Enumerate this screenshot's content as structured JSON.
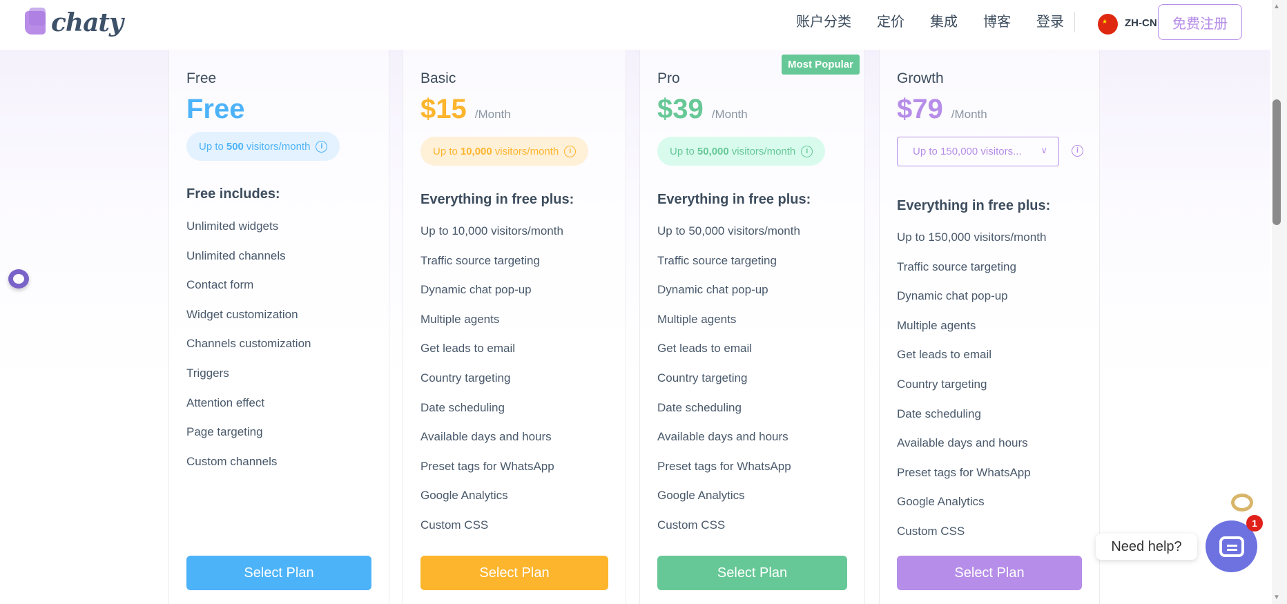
{
  "header": {
    "logo": "chaty",
    "nav": [
      "账户分类",
      "定价",
      "集成",
      "博客",
      "登录"
    ],
    "language": "ZH-CN",
    "signup": "免费注册"
  },
  "colors": {
    "free": "#4db3f9",
    "basic": "#fdb52d",
    "pro": "#66c896",
    "growth": "#b68de8"
  },
  "plans": [
    {
      "name": "Free",
      "price": "Free",
      "per": "",
      "visitors_pre": "Up to",
      "visitors_num": "500",
      "visitors_post": "visitors/month",
      "heading": "Free includes:",
      "items": [
        "Unlimited widgets",
        "Unlimited channels",
        "Contact form",
        "Widget customization",
        "Channels customization",
        "Triggers",
        "Attention effect",
        "Page targeting",
        "Custom channels"
      ],
      "button": "Select Plan"
    },
    {
      "name": "Basic",
      "price": "$15",
      "per": "/Month",
      "visitors_pre": "Up to",
      "visitors_num": "10,000",
      "visitors_post": "visitors/month",
      "heading": "Everything in free plus:",
      "items": [
        "Up to 10,000 visitors/month",
        "Traffic source targeting",
        "Dynamic chat pop-up",
        "Multiple agents",
        "Get leads to email",
        "Country targeting",
        "Date scheduling",
        "Available days and hours",
        "Preset tags for WhatsApp",
        "Google Analytics",
        "Custom CSS"
      ],
      "button": "Select Plan"
    },
    {
      "name": "Pro",
      "badge": "Most Popular",
      "price": "$39",
      "per": "/Month",
      "visitors_pre": "Up to",
      "visitors_num": "50,000",
      "visitors_post": "visitors/month",
      "heading": "Everything in free plus:",
      "items": [
        "Up to 50,000 visitors/month",
        "Traffic source targeting",
        "Dynamic chat pop-up",
        "Multiple agents",
        "Get leads to email",
        "Country targeting",
        "Date scheduling",
        "Available days and hours",
        "Preset tags for WhatsApp",
        "Google Analytics",
        "Custom CSS"
      ],
      "button": "Select Plan"
    },
    {
      "name": "Growth",
      "price": "$79",
      "per": "/Month",
      "visitors_select": "Up to 150,000 visitors...",
      "heading": "Everything in free plus:",
      "items": [
        "Up to 150,000 visitors/month",
        "Traffic source targeting",
        "Dynamic chat pop-up",
        "Multiple agents",
        "Get leads to email",
        "Country targeting",
        "Date scheduling",
        "Available days and hours",
        "Preset tags for WhatsApp",
        "Google Analytics",
        "Custom CSS"
      ],
      "button": "Select Plan"
    }
  ],
  "chat_widget": {
    "label": "Need help?",
    "badge": "1"
  }
}
